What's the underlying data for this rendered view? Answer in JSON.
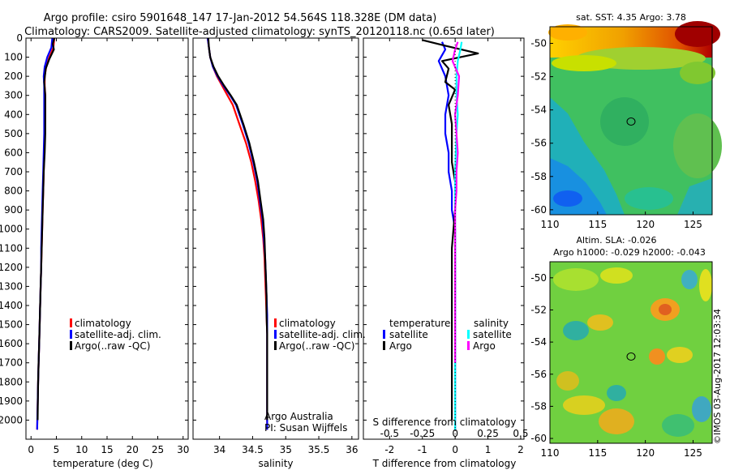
{
  "figure": {
    "title_line1": "Argo profile: csiro 5901648_147 17-Jan-2012 54.564S 118.328E (DM data)",
    "title_line2": "Climatology: CARS2009. Satellite-adjusted climatology: synTS_20120118.nc (0.65d later)",
    "credit": "©IMOS 03-Aug-2017 12:03:34",
    "colors": {
      "climatology": "#ff0000",
      "satellite": "#0000ff",
      "argo": "#000000",
      "sal_satellite": "#00ffff",
      "sal_argo": "#ff00ff"
    }
  },
  "chart_data": [
    {
      "id": "temperature",
      "type": "line",
      "xlabel": "temperature (deg C)",
      "ylabel": "",
      "xlim": [
        -1,
        31
      ],
      "ylim": [
        2100,
        0
      ],
      "xticks": [
        "0",
        "5",
        "10",
        "15",
        "20",
        "25",
        "30"
      ],
      "xtick_values": [
        0,
        5,
        10,
        15,
        20,
        25,
        30
      ],
      "yticks": [
        "0",
        "100",
        "200",
        "300",
        "400",
        "500",
        "600",
        "700",
        "800",
        "900",
        "1000",
        "1100",
        "1200",
        "1300",
        "1400",
        "1500",
        "1600",
        "1700",
        "1800",
        "1900",
        "2000"
      ],
      "ytick_values": [
        0,
        100,
        200,
        300,
        400,
        500,
        600,
        700,
        800,
        900,
        1000,
        1100,
        1200,
        1300,
        1400,
        1500,
        1600,
        1700,
        1800,
        1900,
        2000
      ],
      "legend": [
        "climatology",
        "satellite-adj. clim.",
        "Argo(..raw -QC)"
      ],
      "series": [
        {
          "name": "climatology",
          "color": "#ff0000",
          "x": [
            4.6,
            4.4,
            3.6,
            3.0,
            2.7,
            2.7,
            2.8,
            2.8,
            2.7,
            2.6,
            2.5,
            2.4,
            2.3,
            2.2,
            2.1,
            2.0,
            1.9,
            1.8,
            1.7,
            1.6,
            1.5,
            1.4,
            1.2
          ],
          "y": [
            0,
            50,
            100,
            150,
            200,
            250,
            300,
            400,
            500,
            600,
            700,
            800,
            900,
            1000,
            1100,
            1200,
            1300,
            1400,
            1500,
            1600,
            1700,
            1800,
            2050
          ]
        },
        {
          "name": "satellite-adj. clim.",
          "color": "#0000ff",
          "x": [
            4.2,
            4.0,
            3.2,
            2.7,
            2.5,
            2.6,
            2.6,
            2.6,
            2.6,
            2.5,
            2.4,
            2.3,
            2.2,
            2.1,
            2.0,
            2.0,
            1.9,
            1.8,
            1.7,
            1.6,
            1.5,
            1.4,
            1.2
          ],
          "y": [
            0,
            50,
            100,
            150,
            200,
            250,
            300,
            400,
            500,
            600,
            700,
            800,
            900,
            1000,
            1100,
            1200,
            1300,
            1400,
            1500,
            1600,
            1700,
            1800,
            2050
          ]
        },
        {
          "name": "Argo(..raw -QC)",
          "color": "#000000",
          "x": [
            4.6,
            4.3,
            4.5,
            3.6,
            2.9,
            2.6,
            2.8,
            2.8,
            2.8,
            2.7,
            2.5,
            2.4,
            2.3,
            2.2,
            2.1,
            2.0,
            1.9,
            1.8,
            1.7,
            1.6,
            1.5,
            1.4,
            1.3
          ],
          "y": [
            0,
            30,
            60,
            110,
            160,
            230,
            300,
            400,
            500,
            600,
            700,
            800,
            900,
            1000,
            1100,
            1200,
            1300,
            1400,
            1500,
            1600,
            1700,
            1800,
            2000
          ]
        }
      ]
    },
    {
      "id": "salinity",
      "type": "line",
      "xlabel": "salinity",
      "ylabel": "",
      "xlim": [
        33.6,
        36.1
      ],
      "ylim": [
        2100,
        0
      ],
      "xticks": [
        "34",
        "34.5",
        "35",
        "35.5",
        "36"
      ],
      "xtick_values": [
        34,
        34.5,
        35,
        35.5,
        36
      ],
      "legend": [
        "climatology",
        "satellite-adj. clim.",
        "Argo(..raw -QC)"
      ],
      "annotation": [
        "Argo Australia",
        "PI: Susan Wijffels"
      ],
      "series": [
        {
          "name": "climatology",
          "color": "#ff0000",
          "x": [
            33.82,
            33.84,
            33.86,
            33.9,
            33.96,
            34.04,
            34.12,
            34.2,
            34.3,
            34.4,
            34.48,
            34.54,
            34.59,
            34.63,
            34.66,
            34.68,
            34.69,
            34.7,
            34.71,
            34.72,
            34.72,
            34.72,
            34.72
          ],
          "y": [
            0,
            50,
            100,
            150,
            200,
            250,
            300,
            350,
            450,
            550,
            650,
            750,
            850,
            950,
            1050,
            1150,
            1250,
            1350,
            1450,
            1550,
            1700,
            1850,
            2050
          ]
        },
        {
          "name": "satellite-adj. clim.",
          "color": "#0000ff",
          "x": [
            33.82,
            33.84,
            33.86,
            33.9,
            33.97,
            34.06,
            34.16,
            34.25,
            34.35,
            34.44,
            34.51,
            34.57,
            34.61,
            34.65,
            34.67,
            34.69,
            34.7,
            34.71,
            34.72,
            34.72,
            34.72,
            34.72,
            34.72
          ],
          "y": [
            0,
            50,
            100,
            150,
            200,
            250,
            300,
            350,
            450,
            550,
            650,
            750,
            850,
            950,
            1050,
            1150,
            1250,
            1350,
            1450,
            1550,
            1700,
            1850,
            2050
          ]
        },
        {
          "name": "Argo(..raw -QC)",
          "color": "#000000",
          "x": [
            33.83,
            33.84,
            33.86,
            33.91,
            33.98,
            34.07,
            34.17,
            34.26,
            34.36,
            34.45,
            34.52,
            34.58,
            34.62,
            34.66,
            34.68,
            34.69,
            34.7,
            34.71,
            34.71,
            34.72,
            34.72,
            34.72,
            34.72
          ],
          "y": [
            0,
            50,
            100,
            150,
            200,
            250,
            300,
            350,
            450,
            550,
            650,
            750,
            850,
            950,
            1050,
            1150,
            1250,
            1350,
            1450,
            1550,
            1700,
            1850,
            2000
          ]
        }
      ]
    },
    {
      "id": "difference",
      "type": "line",
      "xlabel": "T difference from climatology",
      "xlabel_top": "S difference from climatology",
      "ylabel": "",
      "xlim": [
        -2.8,
        2.1
      ],
      "ylim": [
        2100,
        0
      ],
      "xticks": [
        "-2",
        "-1",
        "0",
        "1",
        "2"
      ],
      "xtick_values": [
        -2,
        -1,
        0,
        1,
        2
      ],
      "top_ticks": [
        "-0.5",
        "-0.25",
        "0",
        "0.25",
        "0.5"
      ],
      "top_tick_values": [
        -0.5,
        -0.25,
        0,
        0.25,
        0.5
      ],
      "legend_titles": [
        "temperature",
        "salinity"
      ],
      "legend": [
        "satellite",
        "Argo",
        "satellite",
        "Argo"
      ],
      "series": [
        {
          "name": "temperature satellite",
          "color": "#0000ff",
          "x": [
            -0.4,
            -0.3,
            -0.5,
            -0.3,
            -0.2,
            -0.3,
            -0.3,
            -0.2,
            -0.2,
            -0.1,
            -0.1,
            0.0,
            0.0,
            0.0,
            0.0,
            0.0
          ],
          "y": [
            20,
            60,
            120,
            200,
            300,
            400,
            500,
            600,
            700,
            800,
            900,
            1000,
            1200,
            1500,
            1800,
            2050
          ]
        },
        {
          "name": "temperature Argo",
          "color": "#000000",
          "x": [
            -1.0,
            -0.3,
            0.7,
            -0.4,
            -0.2,
            -0.3,
            0.0,
            -0.2,
            -0.1,
            -0.1,
            -0.1,
            0.0,
            0.0,
            -0.1,
            -0.1,
            -0.1,
            -0.1,
            -0.1,
            -0.1
          ],
          "y": [
            10,
            40,
            80,
            120,
            160,
            230,
            270,
            350,
            450,
            550,
            650,
            750,
            900,
            1100,
            1300,
            1500,
            1700,
            1900,
            2000
          ]
        },
        {
          "name": "salinity satellite",
          "color": "#00ffff",
          "x": [
            0.05,
            0.04,
            0.02,
            0.01,
            0.01,
            0.02,
            0.01,
            0.0,
            0.0,
            0.0,
            0.0,
            0.0,
            0.0
          ],
          "y": [
            20,
            60,
            120,
            200,
            300,
            400,
            500,
            700,
            900,
            1100,
            1400,
            1700,
            2050
          ]
        },
        {
          "name": "salinity Argo",
          "color": "#ff00ff",
          "x": [
            0.02,
            0.0,
            -0.02,
            0.03,
            0.02,
            0.0,
            0.01,
            0.02,
            0.01,
            0.01,
            0.0,
            0.0,
            0.0,
            0.0
          ],
          "y": [
            20,
            60,
            120,
            200,
            300,
            400,
            500,
            600,
            700,
            800,
            900,
            1100,
            1400,
            1700
          ]
        }
      ]
    },
    {
      "id": "sst-map",
      "type": "heatmap",
      "title": "sat. SST: 4.35 Argo: 3.78",
      "xlim": [
        110,
        127
      ],
      "ylim": [
        -60.3,
        -49
      ],
      "xticks": [
        "110",
        "115",
        "120",
        "125"
      ],
      "xtick_values": [
        110,
        115,
        120,
        125
      ],
      "yticks": [
        "-50",
        "-52",
        "-54",
        "-56",
        "-58",
        "-60"
      ],
      "ytick_values": [
        -50,
        -52,
        -54,
        -56,
        -58,
        -60
      ],
      "marker": {
        "lon": 118.328,
        "lat": -54.564
      }
    },
    {
      "id": "sla-map",
      "type": "heatmap",
      "title": "Altim. SLA: -0.026",
      "subtitle": "Argo h1000: -0.029 h2000: -0.043",
      "xlim": [
        110,
        127
      ],
      "ylim": [
        -60.3,
        -49
      ],
      "xticks": [
        "110",
        "115",
        "120",
        "125"
      ],
      "xtick_values": [
        110,
        115,
        120,
        125
      ],
      "yticks": [
        "-50",
        "-52",
        "-54",
        "-56",
        "-58",
        "-60"
      ],
      "ytick_values": [
        -50,
        -52,
        -54,
        -56,
        -58,
        -60
      ],
      "marker": {
        "lon": 118.328,
        "lat": -54.564
      }
    }
  ]
}
